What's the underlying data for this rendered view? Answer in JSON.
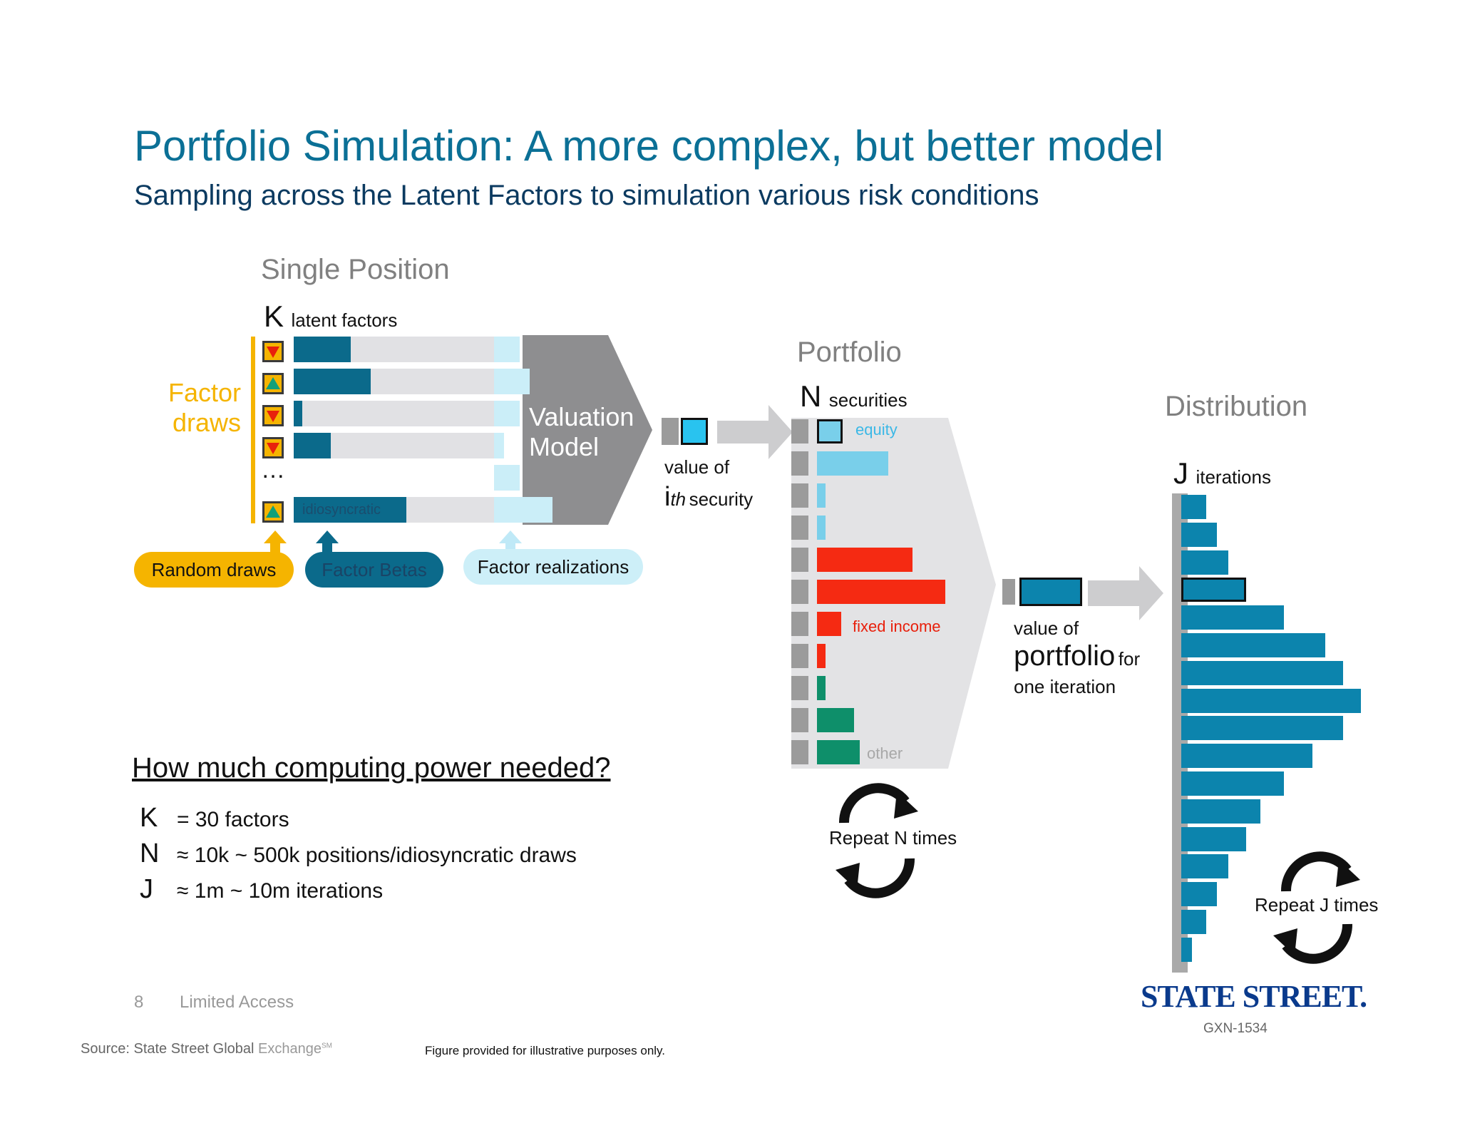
{
  "title": "Portfolio Simulation: A more complex, but better model",
  "subtitle": "Sampling across the Latent Factors to simulation various risk conditions",
  "single_position": {
    "heading": "Single Position",
    "k_letter": "K",
    "k_label": "latent factors",
    "factor_draws": [
      "Factor",
      "draws"
    ],
    "ellipsis": "…",
    "idiosyncratic": "idiosyncratic",
    "model": [
      "Valuation",
      "Model"
    ],
    "pills": {
      "random": "Random draws",
      "betas": "Factor Betas",
      "realizations": "Factor realizations"
    },
    "value_of": "value of",
    "ith_i": "i",
    "ith_th": "th",
    "ith_security": "security"
  },
  "portfolio": {
    "heading": "Portfolio",
    "n_letter": "N",
    "n_label": "securities",
    "equity": "equity",
    "fixed_income": "fixed income",
    "other": "other",
    "repeat": "Repeat N times",
    "value_of": "value of",
    "portfolio_word": "portfolio",
    "for_word": "for",
    "one_iteration": "one iteration"
  },
  "distribution": {
    "heading": "Distribution",
    "j_letter": "J",
    "j_label": "iterations",
    "repeat": "Repeat J times",
    "bars": [
      0.14,
      0.2,
      0.26,
      0.36,
      0.57,
      0.8,
      0.9,
      1.0,
      0.9,
      0.73,
      0.57,
      0.44,
      0.36,
      0.26,
      0.2,
      0.14,
      0.06
    ]
  },
  "compute": {
    "heading": "How much computing power needed?",
    "rows": [
      {
        "letter": "K",
        "text": "= 30 factors"
      },
      {
        "letter": "N",
        "text": "≈ 10k ~ 500k positions/idiosyncratic draws"
      },
      {
        "letter": "J",
        "text": "≈ 1m ~ 10m iterations"
      }
    ]
  },
  "footer": {
    "page": "8",
    "access": "Limited Access",
    "source_label": "Source:  State Street Global ",
    "source_tail": "Exchange",
    "source_sm": "SM",
    "note": "Figure provided for illustrative purposes only.",
    "logo": "STATE STREET.",
    "code": "GXN-1534"
  },
  "colors": {
    "teal_title": "#0b7096",
    "navy": "#0b3a60",
    "amber": "#f5b400",
    "beta": "#0b6a8b",
    "equity": "#79cfea",
    "fixed_income": "#f52a12",
    "other": "#0e8f6a",
    "dist": "#0c84ad"
  }
}
